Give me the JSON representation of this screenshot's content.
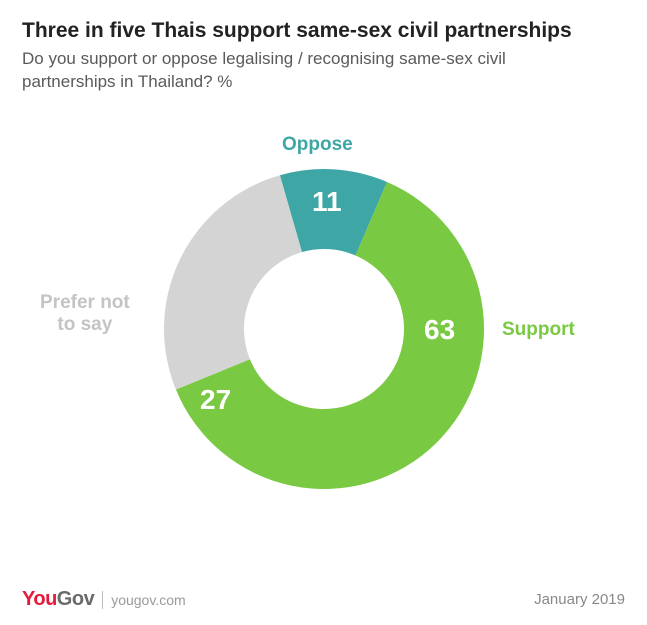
{
  "title": "Three in five Thais support same-sex civil partnerships",
  "subtitle": "Do you support or oppose legalising / recognising same-sex civil partnerships in Thailand? %",
  "chart": {
    "type": "donut",
    "inner_radius": 80,
    "outer_radius": 160,
    "start_angle_deg": -16,
    "background_color": "#ffffff",
    "slices": [
      {
        "key": "oppose",
        "label": "Oppose",
        "value": 11,
        "color": "#3fa6a6"
      },
      {
        "key": "support",
        "label": "Support",
        "value": 63,
        "color": "#7ac943"
      },
      {
        "key": "prefer",
        "label": "Prefer not\nto say",
        "value": 27,
        "color": "#d4d4d4"
      }
    ],
    "label_colors": {
      "oppose": "#3fa6a6",
      "support": "#7ac943",
      "prefer": "#c4c4c4"
    },
    "value_text_color": "#ffffff",
    "label_fontsize": 19,
    "value_fontsize": 28
  },
  "footer": {
    "brand_part1": "You",
    "brand_part2": "Gov",
    "brand_color1": "#e6193c",
    "brand_color2": "#6a6a6a",
    "url": "yougov.com",
    "date": "January 2019"
  }
}
